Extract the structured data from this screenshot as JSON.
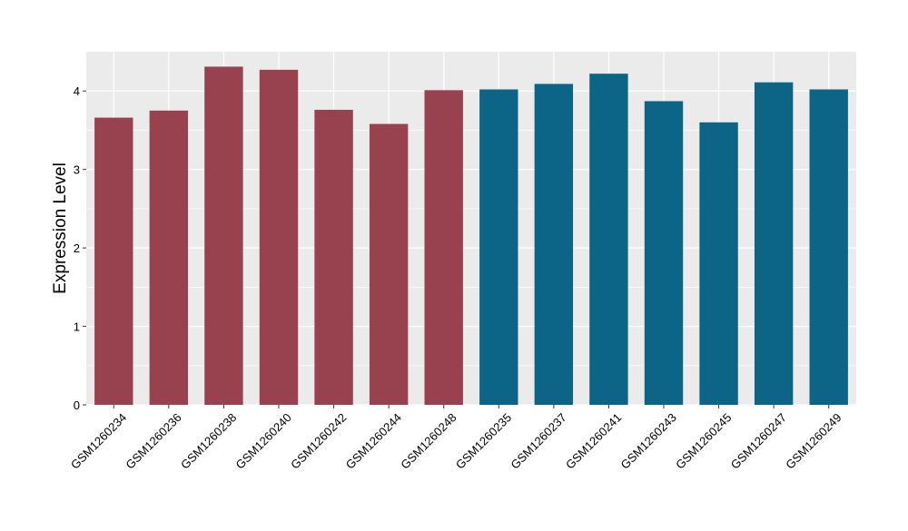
{
  "chart_data": {
    "type": "bar",
    "title": "",
    "xlabel": "",
    "ylabel": "Expression Level",
    "ylim": [
      0,
      4.5
    ],
    "yticks": [
      0,
      1,
      2,
      3,
      4
    ],
    "grid": true,
    "colors": {
      "panel": "#EBEBEB",
      "grid": "#FFFFFF",
      "groupA": "#99424F",
      "groupB": "#0C6487"
    },
    "categories": [
      "GSM1260234",
      "GSM1260236",
      "GSM1260238",
      "GSM1260240",
      "GSM1260242",
      "GSM1260244",
      "GSM1260248",
      "GSM1260235",
      "GSM1260237",
      "GSM1260241",
      "GSM1260243",
      "GSM1260245",
      "GSM1260247",
      "GSM1260249"
    ],
    "values": [
      3.66,
      3.75,
      4.31,
      4.27,
      3.76,
      3.58,
      4.01,
      4.02,
      4.09,
      4.22,
      3.87,
      3.6,
      4.11,
      4.02
    ],
    "bar_colors": [
      "#99424F",
      "#99424F",
      "#99424F",
      "#99424F",
      "#99424F",
      "#99424F",
      "#99424F",
      "#0C6487",
      "#0C6487",
      "#0C6487",
      "#0C6487",
      "#0C6487",
      "#0C6487",
      "#0C6487"
    ]
  }
}
